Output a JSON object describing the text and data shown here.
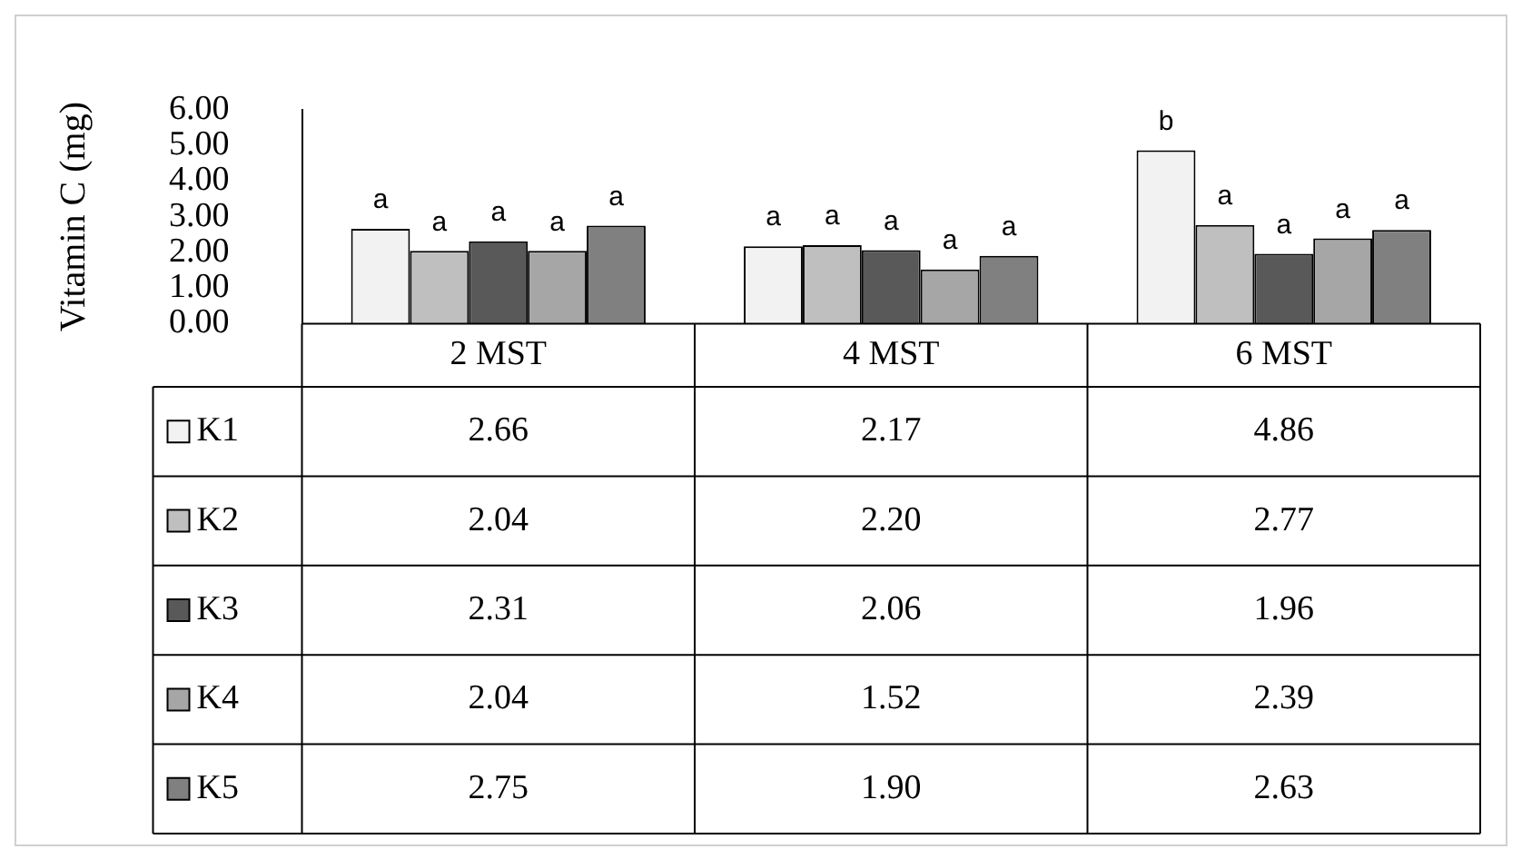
{
  "chart_data": {
    "type": "bar",
    "ylabel": "Vitamin C (mg)",
    "categories": [
      "2 MST",
      "4 MST",
      "6 MST"
    ],
    "series": [
      {
        "name": "K1",
        "color": "#f2f2f2",
        "values": [
          2.66,
          2.17,
          4.86
        ],
        "value_labels": [
          "2.66",
          "2.17",
          "4.86"
        ]
      },
      {
        "name": "K2",
        "color": "#bfbfbf",
        "values": [
          2.04,
          2.2,
          2.77
        ],
        "value_labels": [
          "2.04",
          "2.20",
          "2.77"
        ]
      },
      {
        "name": "K3",
        "color": "#595959",
        "values": [
          2.31,
          2.06,
          1.96
        ],
        "value_labels": [
          "2.31",
          "2.06",
          "1.96"
        ]
      },
      {
        "name": "K4",
        "color": "#a6a6a6",
        "values": [
          2.04,
          1.52,
          2.39
        ],
        "value_labels": [
          "2.04",
          "1.52",
          "2.39"
        ]
      },
      {
        "name": "K5",
        "color": "#808080",
        "values": [
          2.75,
          1.9,
          2.63
        ],
        "value_labels": [
          "2.75",
          "1.90",
          "2.63"
        ]
      }
    ],
    "ylim": [
      0,
      6
    ],
    "yticks": [
      {
        "value": 0,
        "label": "0.00"
      },
      {
        "value": 1,
        "label": "1.00"
      },
      {
        "value": 2,
        "label": "2.00"
      },
      {
        "value": 3,
        "label": "3.00"
      },
      {
        "value": 4,
        "label": "4.00"
      },
      {
        "value": 5,
        "label": "5.00"
      },
      {
        "value": 6,
        "label": "6.00"
      }
    ],
    "grid": false,
    "legend": "bottom",
    "annotations": [
      "a",
      "a",
      "a",
      "a",
      "a",
      "a",
      "a",
      "a",
      "a",
      "a",
      "b",
      "a",
      "a",
      "a",
      "a"
    ]
  }
}
